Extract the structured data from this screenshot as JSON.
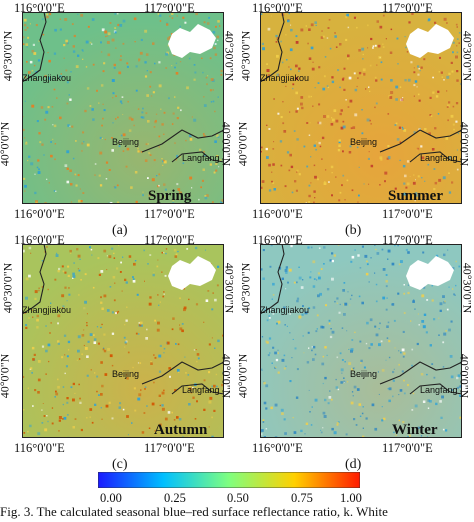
{
  "panels": [
    {
      "letter": "(a)",
      "season": "Spring",
      "base": "#6ec08a",
      "warm": 0.35,
      "speckle": "#e67e22"
    },
    {
      "letter": "(b)",
      "season": "Summer",
      "base": "#d7b23e",
      "warm": 0.85,
      "speckle": "#c0392b"
    },
    {
      "letter": "(c)",
      "season": "Autumn",
      "base": "#a9c45d",
      "warm": 0.55,
      "speckle": "#d35400"
    },
    {
      "letter": "(d)",
      "season": "Winter",
      "base": "#8ec8c0",
      "warm": 0.3,
      "speckle": "#2e86c1"
    }
  ],
  "axes": {
    "x_left": "116°0'0\"E",
    "x_right": "117°0'0\"E",
    "y_top": "40°30'0\"N",
    "y_bottom": "40°0'0\"N"
  },
  "cities": {
    "zhangjiakou": "Zhangjiakou",
    "beijing": "Beijing",
    "langfang": "Langfang"
  },
  "colorbar": {
    "ticks": [
      "0.00",
      "0.25",
      "0.50",
      "0.75",
      "1.00"
    ],
    "colors": [
      "#1a1aff",
      "#00bfff",
      "#7fff7f",
      "#ffd000",
      "#ff1a00"
    ]
  },
  "caption": "Fig. 3.   The calculated seasonal blue–red surface reflectance ratio, k. White"
}
